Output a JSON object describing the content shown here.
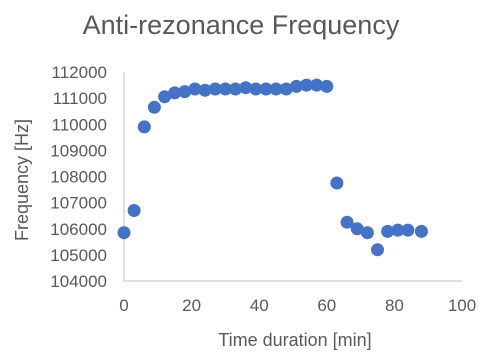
{
  "chart_data": {
    "type": "scatter",
    "title": "Anti-rezonance Frequency",
    "xlabel": "Time duration [min]",
    "ylabel": "Frequency [Hz]",
    "xlim": [
      0,
      100
    ],
    "ylim": [
      104000,
      112000
    ],
    "x_ticks": [
      0,
      20,
      40,
      60,
      80,
      100
    ],
    "y_ticks": [
      104000,
      105000,
      106000,
      107000,
      108000,
      109000,
      110000,
      111000,
      112000
    ],
    "grid": false,
    "legend": "none",
    "marker_color": "#4472C4",
    "text_color": "#595959",
    "axis_color": "#BFBFBF",
    "series": [
      {
        "x": [
          0,
          3,
          6,
          9,
          12,
          15,
          18,
          21,
          24,
          27,
          30,
          33,
          36,
          39,
          42,
          45,
          48,
          51,
          54,
          57,
          60,
          63,
          66,
          69,
          72,
          75,
          78,
          81,
          84,
          88
        ],
        "y": [
          105850,
          106700,
          109900,
          110650,
          111050,
          111200,
          111250,
          111350,
          111300,
          111350,
          111350,
          111350,
          111400,
          111350,
          111350,
          111350,
          111350,
          111450,
          111500,
          111500,
          111450,
          107750,
          106250,
          106000,
          105850,
          105200,
          105900,
          105950,
          105950,
          105900
        ]
      }
    ]
  }
}
